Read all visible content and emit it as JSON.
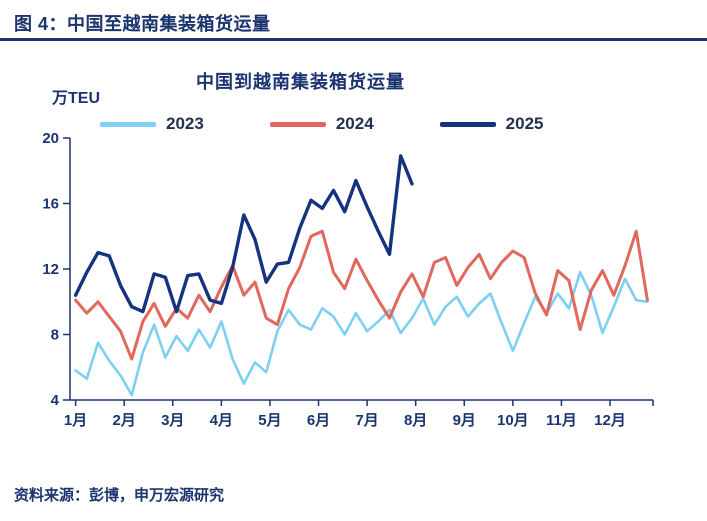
{
  "page": {
    "figure_title": "图 4：中国至越南集装箱货运量",
    "source": "资料来源：彭博，申万宏源研究"
  },
  "colors": {
    "text_navy": "#1B3470",
    "axis": "#1B3470",
    "series_2023": "#7DD0F2",
    "series_2024": "#E0685C",
    "series_2025": "#16337F"
  },
  "chart_data": {
    "type": "line",
    "title": "中国到越南集装箱货运量",
    "ylabel": "万TEU",
    "xlabel": "",
    "ylim": [
      4,
      20
    ],
    "yticks": [
      4,
      8,
      12,
      16,
      20
    ],
    "grid": false,
    "legend_position": "top",
    "x_unit": "week-of-year",
    "weeks_per_year": 52,
    "xtick_labels": [
      "1月",
      "2月",
      "3月",
      "4月",
      "5月",
      "6月",
      "7月",
      "8月",
      "9月",
      "10月",
      "11月",
      "12月"
    ],
    "series": [
      {
        "name": "2023",
        "color": "#7DD0F2",
        "values": [
          5.8,
          5.3,
          7.5,
          6.4,
          5.5,
          4.3,
          6.9,
          8.6,
          6.6,
          7.9,
          7.0,
          8.3,
          7.2,
          8.8,
          6.5,
          5.0,
          6.3,
          5.7,
          8.2,
          9.5,
          8.6,
          8.3,
          9.6,
          9.1,
          8.0,
          9.3,
          8.2,
          8.8,
          9.5,
          8.1,
          9.0,
          10.2,
          8.6,
          9.7,
          10.3,
          9.1,
          9.9,
          10.5,
          8.7,
          7.0,
          8.7,
          10.3,
          9.3,
          10.5,
          9.6,
          11.8,
          10.4,
          8.1,
          9.7,
          11.4,
          10.1,
          10.0
        ]
      },
      {
        "name": "2024",
        "color": "#E0685C",
        "values": [
          10.1,
          9.3,
          10.0,
          9.1,
          8.2,
          6.5,
          8.8,
          9.9,
          8.5,
          9.6,
          9.0,
          10.4,
          9.4,
          10.9,
          12.2,
          10.4,
          11.2,
          9.0,
          8.6,
          10.8,
          12.1,
          14.0,
          14.3,
          11.8,
          10.8,
          12.6,
          11.3,
          10.1,
          9.0,
          10.6,
          11.7,
          10.3,
          12.4,
          12.7,
          11.0,
          12.1,
          12.9,
          11.4,
          12.4,
          13.1,
          12.7,
          10.5,
          9.2,
          11.9,
          11.3,
          8.3,
          10.7,
          11.9,
          10.4,
          12.2,
          14.3,
          10.1
        ]
      },
      {
        "name": "2025",
        "color": "#16337F",
        "values": [
          10.4,
          11.8,
          13.0,
          12.8,
          11.0,
          9.7,
          9.4,
          11.7,
          11.5,
          9.4,
          11.6,
          11.7,
          10.1,
          9.9,
          12.1,
          15.3,
          13.8,
          11.2,
          12.3,
          12.4,
          14.5,
          16.2,
          15.7,
          16.8,
          15.5,
          17.4,
          15.8,
          14.3,
          12.9,
          18.9,
          17.2
        ]
      }
    ]
  }
}
